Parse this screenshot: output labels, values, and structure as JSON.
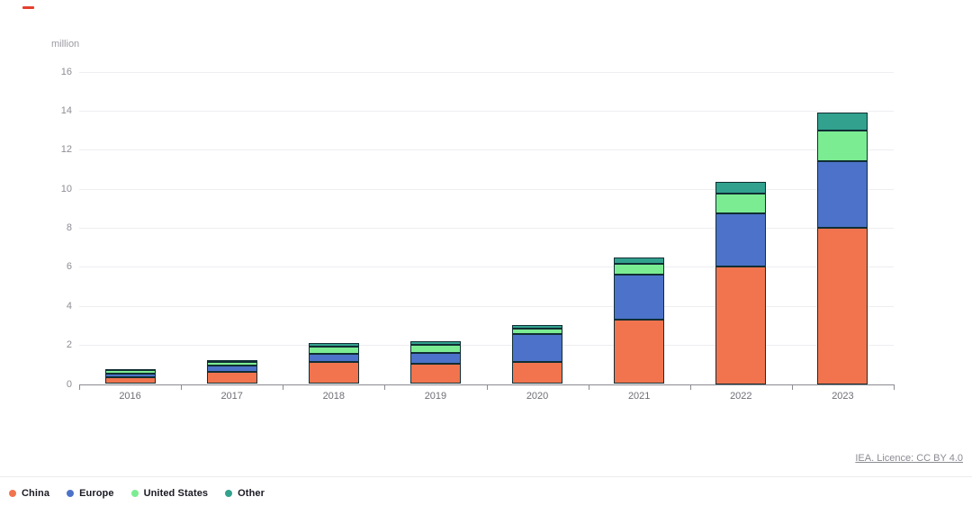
{
  "decoration": {
    "red_marker_color": "#e5402e"
  },
  "chart_data": {
    "type": "bar",
    "stacked": true,
    "unit_label": "million",
    "categories": [
      "2016",
      "2017",
      "2018",
      "2019",
      "2020",
      "2021",
      "2022",
      "2023"
    ],
    "series": [
      {
        "name": "China",
        "color": "#f1744e",
        "values": [
          0.35,
          0.63,
          1.15,
          1.05,
          1.15,
          3.3,
          6.0,
          8.0
        ]
      },
      {
        "name": "Europe",
        "color": "#4c73c9",
        "values": [
          0.2,
          0.31,
          0.41,
          0.52,
          1.4,
          2.3,
          2.75,
          3.4
        ]
      },
      {
        "name": "United States",
        "color": "#7cec92",
        "values": [
          0.17,
          0.18,
          0.36,
          0.42,
          0.28,
          0.55,
          1.0,
          1.6
        ]
      },
      {
        "name": "Other",
        "color": "#32a18e",
        "values": [
          0.05,
          0.1,
          0.18,
          0.18,
          0.18,
          0.33,
          0.62,
          0.9
        ]
      }
    ],
    "ylim": [
      0,
      16
    ],
    "ytick_step": 2,
    "grid": true,
    "legend_position": "bottom-left"
  },
  "footer": {
    "license_label": "IEA. Licence: CC BY 4.0"
  }
}
